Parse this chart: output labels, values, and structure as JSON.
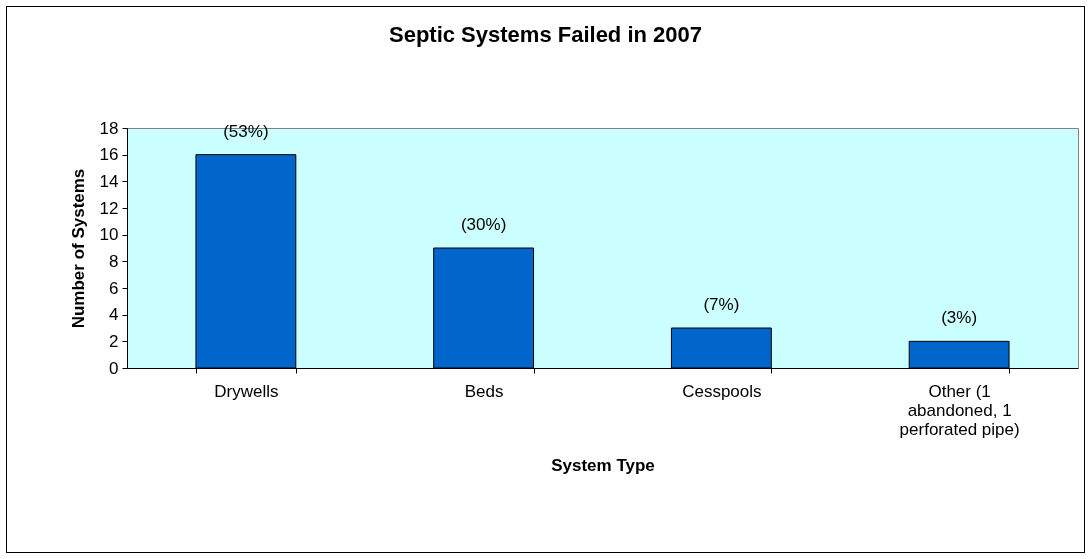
{
  "chart_data": {
    "type": "bar",
    "title": "Septic Systems Failed in 2007",
    "xlabel": "System Type",
    "ylabel": "Number of Systems",
    "categories": [
      "Drywells",
      "Beds",
      "Cesspools",
      "Other (1 abandoned, 1 perforated pipe)"
    ],
    "values": [
      16,
      9,
      3,
      2
    ],
    "annotations": [
      {
        "text": "(53%)",
        "x": "Drywells",
        "y": 16
      },
      {
        "text": "(30%)",
        "x": "Beds",
        "y": 9
      },
      {
        "text": "(7%)",
        "x": "Cesspools",
        "y": 3
      },
      {
        "text": "(3%)",
        "x": "Other (1 abandoned, 1 perforated pipe)",
        "y": 2
      }
    ],
    "color": "#0066cc",
    "ylim": [
      0,
      18
    ],
    "yticks": [
      0,
      2,
      4,
      6,
      8,
      10,
      12,
      14,
      16,
      18
    ],
    "grid": false
  }
}
